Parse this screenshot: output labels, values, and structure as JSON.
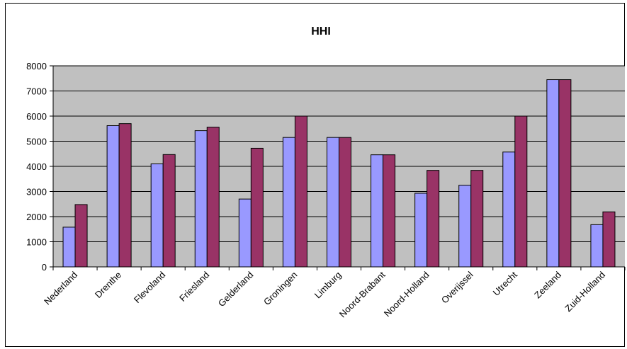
{
  "chart_data": {
    "type": "bar",
    "title": "HHI",
    "xlabel": "",
    "ylabel": "",
    "ylim": [
      0,
      8000
    ],
    "yticks": [
      0,
      1000,
      2000,
      3000,
      4000,
      5000,
      6000,
      7000,
      8000
    ],
    "grid": true,
    "legend": "none",
    "categories": [
      "Nederland",
      "Drenthe",
      "Flevoland",
      "Friesland",
      "Gelderland",
      "Groningen",
      "Limburg",
      "Noord-Brabant",
      "Noord-Holland",
      "Overijssel",
      "Utrecht",
      "Zeeland",
      "Zuid-Holland"
    ],
    "series": [
      {
        "color": "#9999ff",
        "values": [
          1580,
          5620,
          4100,
          5420,
          2700,
          5150,
          5150,
          4460,
          2930,
          3250,
          4570,
          7450,
          1680
        ]
      },
      {
        "color": "#993366",
        "values": [
          2480,
          5700,
          4470,
          5560,
          4720,
          6000,
          5150,
          4460,
          3840,
          3840,
          6000,
          7450,
          2190
        ]
      }
    ],
    "plot_background": "#c0c0c0",
    "axis_color": "#000000"
  }
}
